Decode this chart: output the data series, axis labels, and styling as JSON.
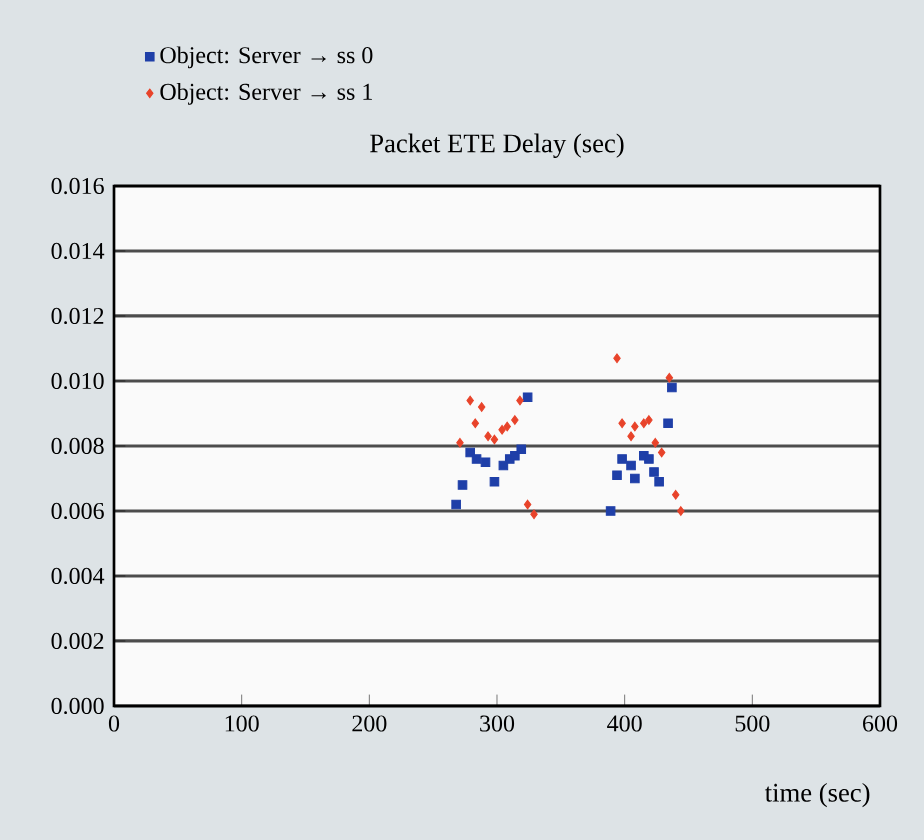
{
  "chart_data": {
    "type": "scatter",
    "title": "Packet ETE Delay (sec)",
    "xlabel": "time (sec)",
    "xlim": [
      0,
      600
    ],
    "xticks": [
      0,
      100,
      200,
      300,
      400,
      500,
      600
    ],
    "ylim": [
      0,
      0.016
    ],
    "yticks": [
      {
        "value": 0,
        "label": "0.000"
      },
      {
        "value": 0.002,
        "label": "0.002"
      },
      {
        "value": 0.004,
        "label": "0.004"
      },
      {
        "value": 0.006,
        "label": "0.006"
      },
      {
        "value": 0.008,
        "label": "0.008"
      },
      {
        "value": 0.01,
        "label": "0.010"
      },
      {
        "value": 0.012,
        "label": "0.012"
      },
      {
        "value": 0.014,
        "label": "0.014"
      },
      {
        "value": 0.016,
        "label": "0.016"
      }
    ],
    "grid": "y",
    "legend": "top left",
    "marker": "square",
    "series": [
      {
        "name": "Object: Server → ss 0",
        "color": "#1f3fa8",
        "x": [
          268,
          273,
          279,
          284,
          291,
          298,
          305,
          310,
          314,
          319,
          324,
          389,
          394,
          398,
          405,
          408,
          415,
          419,
          423,
          427,
          434,
          437
        ],
        "values": [
          0.0062,
          0.0068,
          0.0078,
          0.0076,
          0.0075,
          0.0069,
          0.0074,
          0.0076,
          0.0077,
          0.0079,
          0.0095,
          0.006,
          0.0071,
          0.0076,
          0.0074,
          0.007,
          0.0077,
          0.0076,
          0.0072,
          0.0069,
          0.0087,
          0.0098
        ]
      },
      {
        "name": "Object: Server → ss 1",
        "color": "#e8432a",
        "marker": "diamond",
        "x": [
          271,
          279,
          283,
          288,
          293,
          298,
          304,
          308,
          314,
          318,
          324,
          329,
          394,
          398,
          405,
          408,
          415,
          419,
          424,
          429,
          435,
          440,
          444
        ],
        "values": [
          0.0081,
          0.0094,
          0.0087,
          0.0092,
          0.0083,
          0.0082,
          0.0085,
          0.0086,
          0.0088,
          0.0094,
          0.0062,
          0.0059,
          0.0107,
          0.0087,
          0.0083,
          0.0086,
          0.0087,
          0.0088,
          0.0081,
          0.0078,
          0.0101,
          0.0065,
          0.006
        ]
      }
    ]
  }
}
